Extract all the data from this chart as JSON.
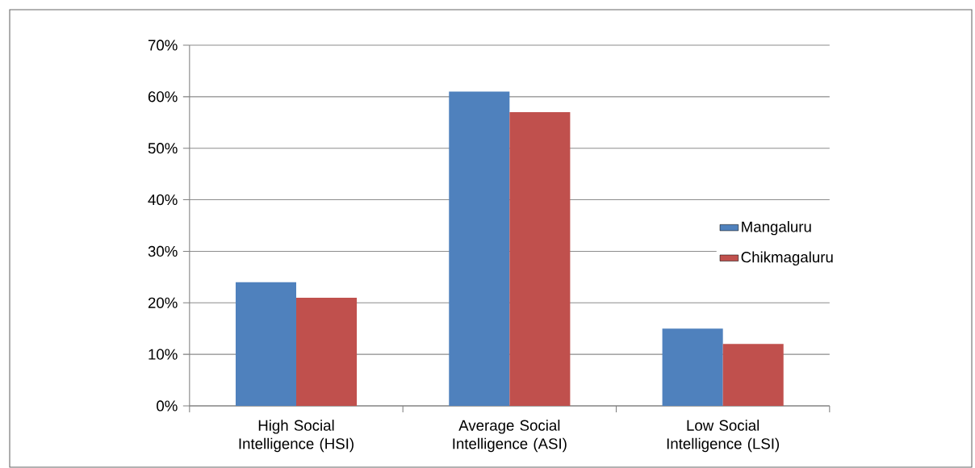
{
  "chart_data": {
    "type": "bar",
    "categories": [
      "High Social Intelligence (HSI)",
      "Average Social Intelligence (ASI)",
      "Low Social Intelligence (LSI)"
    ],
    "series": [
      {
        "name": "Mangaluru",
        "color": "#4f81bd",
        "values": [
          24,
          61,
          15
        ]
      },
      {
        "name": "Chikmagaluru",
        "color": "#c0504d",
        "values": [
          21,
          57,
          12
        ]
      }
    ],
    "ylim": [
      0,
      70
    ],
    "yticks": [
      {
        "value": 0,
        "label": "0%"
      },
      {
        "value": 10,
        "label": "10%"
      },
      {
        "value": 20,
        "label": "20%"
      },
      {
        "value": 30,
        "label": "30%"
      },
      {
        "value": 40,
        "label": "40%"
      },
      {
        "value": 50,
        "label": "50%"
      },
      {
        "value": 60,
        "label": "60%"
      },
      {
        "value": 70,
        "label": "70%"
      }
    ],
    "grid": "y",
    "legend": "right"
  }
}
